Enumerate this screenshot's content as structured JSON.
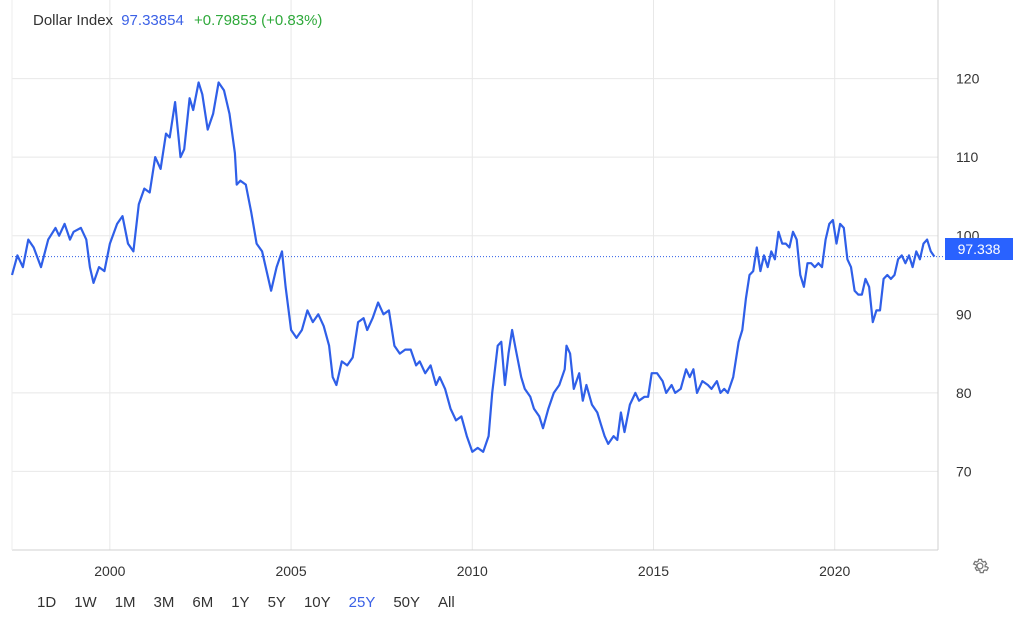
{
  "header": {
    "name": "Dollar Index",
    "value": "97.33854",
    "change": "+0.79853 (+0.83%)"
  },
  "colors": {
    "line": "#2f5fe8",
    "accent": "#3b61e6",
    "positive": "#2fa93b",
    "tag": "#2962ff",
    "grid": "#e8e8e8"
  },
  "price_tag": "97.338",
  "ranges": [
    {
      "label": "1D",
      "active": false
    },
    {
      "label": "1W",
      "active": false
    },
    {
      "label": "1M",
      "active": false
    },
    {
      "label": "3M",
      "active": false
    },
    {
      "label": "6M",
      "active": false
    },
    {
      "label": "1Y",
      "active": false
    },
    {
      "label": "5Y",
      "active": false
    },
    {
      "label": "10Y",
      "active": false
    },
    {
      "label": "25Y",
      "active": true
    },
    {
      "label": "50Y",
      "active": false
    },
    {
      "label": "All",
      "active": false
    }
  ],
  "icons": {
    "settings": "gear-icon"
  },
  "chart_data": {
    "type": "line",
    "title": "Dollar Index",
    "xlabel": "",
    "ylabel": "",
    "xlim": [
      1997.3,
      2022.85
    ],
    "ylim": [
      60,
      130
    ],
    "x_ticks": [
      "2000",
      "2005",
      "2010",
      "2015",
      "2020"
    ],
    "y_ticks": [
      "70",
      "80",
      "90",
      "100",
      "110",
      "120"
    ],
    "reference_line": 97.338,
    "grid": true,
    "legend": "none",
    "series": [
      {
        "values": [
          [
            1997.3,
            95.0
          ],
          [
            1997.45,
            97.5
          ],
          [
            1997.6,
            96.0
          ],
          [
            1997.75,
            99.5
          ],
          [
            1997.9,
            98.5
          ],
          [
            1998.1,
            96.0
          ],
          [
            1998.3,
            99.5
          ],
          [
            1998.5,
            101.0
          ],
          [
            1998.6,
            100.0
          ],
          [
            1998.75,
            101.5
          ],
          [
            1998.9,
            99.5
          ],
          [
            1999.0,
            100.5
          ],
          [
            1999.2,
            101.0
          ],
          [
            1999.35,
            99.5
          ],
          [
            1999.45,
            96.0
          ],
          [
            1999.55,
            94.0
          ],
          [
            1999.7,
            96.0
          ],
          [
            1999.85,
            95.5
          ],
          [
            2000.0,
            99.0
          ],
          [
            2000.2,
            101.5
          ],
          [
            2000.35,
            102.5
          ],
          [
            2000.5,
            99.0
          ],
          [
            2000.65,
            98.0
          ],
          [
            2000.8,
            104.0
          ],
          [
            2000.95,
            106.0
          ],
          [
            2001.1,
            105.5
          ],
          [
            2001.25,
            110.0
          ],
          [
            2001.4,
            108.5
          ],
          [
            2001.55,
            113.0
          ],
          [
            2001.65,
            112.5
          ],
          [
            2001.8,
            117.0
          ],
          [
            2001.95,
            110.0
          ],
          [
            2002.05,
            111.0
          ],
          [
            2002.2,
            117.5
          ],
          [
            2002.3,
            116.0
          ],
          [
            2002.45,
            119.5
          ],
          [
            2002.55,
            118.0
          ],
          [
            2002.7,
            113.5
          ],
          [
            2002.85,
            115.5
          ],
          [
            2003.0,
            119.5
          ],
          [
            2003.15,
            118.5
          ],
          [
            2003.3,
            115.5
          ],
          [
            2003.45,
            110.5
          ],
          [
            2003.5,
            106.5
          ],
          [
            2003.6,
            107.0
          ],
          [
            2003.75,
            106.5
          ],
          [
            2003.9,
            103.0
          ],
          [
            2004.05,
            99.0
          ],
          [
            2004.2,
            98.0
          ],
          [
            2004.35,
            95.0
          ],
          [
            2004.45,
            93.0
          ],
          [
            2004.6,
            96.0
          ],
          [
            2004.75,
            98.0
          ],
          [
            2004.85,
            93.5
          ],
          [
            2005.0,
            88.0
          ],
          [
            2005.15,
            87.0
          ],
          [
            2005.3,
            88.0
          ],
          [
            2005.45,
            90.5
          ],
          [
            2005.6,
            89.0
          ],
          [
            2005.75,
            90.0
          ],
          [
            2005.9,
            88.5
          ],
          [
            2006.05,
            86.0
          ],
          [
            2006.15,
            82.0
          ],
          [
            2006.25,
            81.0
          ],
          [
            2006.4,
            84.0
          ],
          [
            2006.55,
            83.5
          ],
          [
            2006.7,
            84.5
          ],
          [
            2006.85,
            89.0
          ],
          [
            2007.0,
            89.5
          ],
          [
            2007.1,
            88.0
          ],
          [
            2007.25,
            89.5
          ],
          [
            2007.4,
            91.5
          ],
          [
            2007.55,
            90.0
          ],
          [
            2007.7,
            90.5
          ],
          [
            2007.85,
            86.0
          ],
          [
            2008.0,
            85.0
          ],
          [
            2008.15,
            85.5
          ],
          [
            2008.3,
            85.5
          ],
          [
            2008.45,
            83.5
          ],
          [
            2008.55,
            84.0
          ],
          [
            2008.7,
            82.5
          ],
          [
            2008.85,
            83.5
          ],
          [
            2009.0,
            81.0
          ],
          [
            2009.1,
            82.0
          ],
          [
            2009.25,
            80.5
          ],
          [
            2009.4,
            78.0
          ],
          [
            2009.55,
            76.5
          ],
          [
            2009.7,
            77.0
          ],
          [
            2009.85,
            74.5
          ],
          [
            2010.0,
            72.5
          ],
          [
            2010.15,
            73.0
          ],
          [
            2010.3,
            72.5
          ],
          [
            2010.45,
            74.5
          ],
          [
            2010.55,
            80.0
          ],
          [
            2010.7,
            86.0
          ],
          [
            2010.8,
            86.5
          ],
          [
            2010.9,
            81.0
          ],
          [
            2011.0,
            85.0
          ],
          [
            2011.1,
            88.0
          ],
          [
            2011.2,
            85.5
          ],
          [
            2011.35,
            82.0
          ],
          [
            2011.45,
            80.5
          ],
          [
            2011.6,
            79.5
          ],
          [
            2011.7,
            78.0
          ],
          [
            2011.85,
            77.0
          ],
          [
            2011.95,
            75.5
          ],
          [
            2012.1,
            78.0
          ],
          [
            2012.25,
            80.0
          ],
          [
            2012.4,
            81.0
          ],
          [
            2012.55,
            83.0
          ],
          [
            2012.6,
            86.0
          ],
          [
            2012.7,
            85.0
          ],
          [
            2012.8,
            80.5
          ],
          [
            2012.95,
            82.5
          ],
          [
            2013.05,
            79.0
          ],
          [
            2013.15,
            81.0
          ],
          [
            2013.3,
            78.5
          ],
          [
            2013.45,
            77.5
          ],
          [
            2013.55,
            76.0
          ],
          [
            2013.65,
            74.5
          ],
          [
            2013.75,
            73.5
          ],
          [
            2013.9,
            74.5
          ],
          [
            2014.0,
            74.0
          ],
          [
            2014.1,
            77.5
          ],
          [
            2014.2,
            75.0
          ],
          [
            2014.35,
            78.5
          ],
          [
            2014.5,
            80.0
          ],
          [
            2014.6,
            79.0
          ],
          [
            2014.75,
            79.5
          ],
          [
            2014.85,
            79.5
          ],
          [
            2014.95,
            82.5
          ],
          [
            2015.1,
            82.5
          ],
          [
            2015.25,
            81.5
          ],
          [
            2015.35,
            80.0
          ],
          [
            2015.5,
            81.0
          ],
          [
            2015.6,
            80.0
          ],
          [
            2015.75,
            80.5
          ],
          [
            2015.9,
            83.0
          ],
          [
            2016.0,
            82.0
          ],
          [
            2016.1,
            83.0
          ],
          [
            2016.2,
            80.0
          ],
          [
            2016.35,
            81.5
          ],
          [
            2016.5,
            81.0
          ],
          [
            2016.6,
            80.5
          ],
          [
            2016.75,
            81.5
          ],
          [
            2016.85,
            80.0
          ],
          [
            2016.95,
            80.5
          ],
          [
            2017.05,
            80.0
          ],
          [
            2017.2,
            82.0
          ],
          [
            2017.35,
            86.5
          ],
          [
            2017.45,
            88.0
          ],
          [
            2017.55,
            92.0
          ],
          [
            2017.65,
            95.0
          ],
          [
            2017.75,
            95.5
          ],
          [
            2017.85,
            98.5
          ],
          [
            2017.95,
            95.5
          ],
          [
            2018.05,
            97.5
          ],
          [
            2018.15,
            96.0
          ],
          [
            2018.25,
            98.0
          ],
          [
            2018.35,
            97.0
          ],
          [
            2018.45,
            100.5
          ],
          [
            2018.55,
            99.0
          ],
          [
            2018.65,
            99.0
          ],
          [
            2018.75,
            98.5
          ],
          [
            2018.85,
            100.5
          ],
          [
            2018.95,
            99.5
          ],
          [
            2019.05,
            95.0
          ],
          [
            2019.15,
            93.5
          ],
          [
            2019.25,
            96.5
          ],
          [
            2019.35,
            96.5
          ],
          [
            2019.45,
            96.0
          ],
          [
            2019.55,
            96.5
          ],
          [
            2019.65,
            96.0
          ],
          [
            2019.75,
            99.5
          ],
          [
            2019.85,
            101.5
          ],
          [
            2019.95,
            102.0
          ],
          [
            2020.05,
            99.0
          ],
          [
            2020.15,
            101.5
          ],
          [
            2020.25,
            101.0
          ],
          [
            2020.35,
            97.0
          ],
          [
            2020.45,
            96.0
          ],
          [
            2020.55,
            93.0
          ],
          [
            2020.65,
            92.5
          ],
          [
            2020.75,
            92.5
          ],
          [
            2020.85,
            94.5
          ],
          [
            2020.95,
            93.5
          ],
          [
            2021.05,
            89.0
          ],
          [
            2021.15,
            90.5
          ],
          [
            2021.25,
            90.5
          ],
          [
            2021.35,
            94.5
          ],
          [
            2021.45,
            95.0
          ],
          [
            2021.55,
            94.5
          ],
          [
            2021.65,
            95.0
          ],
          [
            2021.75,
            97.0
          ],
          [
            2021.85,
            97.5
          ],
          [
            2021.95,
            96.5
          ],
          [
            2022.05,
            97.5
          ],
          [
            2022.15,
            96.0
          ],
          [
            2022.25,
            98.0
          ],
          [
            2022.35,
            97.0
          ],
          [
            2022.45,
            99.0
          ],
          [
            2022.55,
            99.5
          ],
          [
            2022.65,
            98.0
          ],
          [
            2022.75,
            97.338
          ]
        ]
      }
    ]
  }
}
